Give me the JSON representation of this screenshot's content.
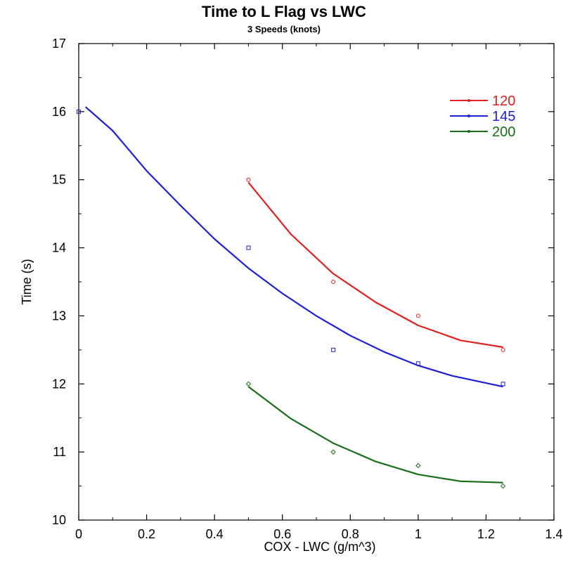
{
  "chart_data": {
    "type": "scatter",
    "title": "Time to L Flag vs LWC",
    "subtitle": "3 Speeds (knots)",
    "xlabel": "COX - LWC (g/m^3)",
    "ylabel": "Time (s)",
    "xlim": [
      0,
      1.4
    ],
    "ylim": [
      10,
      17
    ],
    "xticks": [
      "0",
      "0.2",
      "0.4",
      "0.6",
      "0.8",
      "1",
      "1.2",
      "1.4"
    ],
    "yticks": [
      "10",
      "11",
      "12",
      "13",
      "14",
      "15",
      "16",
      "17"
    ],
    "legend_position": "top-right",
    "grid": false,
    "series": [
      {
        "name": "120",
        "color": "#e0201e",
        "marker": "circle",
        "points": [
          [
            0.5,
            15.0
          ],
          [
            0.75,
            13.5
          ],
          [
            1.0,
            13.0
          ],
          [
            1.25,
            12.5
          ]
        ],
        "fit": [
          [
            0.5,
            14.96
          ],
          [
            0.625,
            14.2
          ],
          [
            0.75,
            13.62
          ],
          [
            0.875,
            13.2
          ],
          [
            1.0,
            12.86
          ],
          [
            1.125,
            12.64
          ],
          [
            1.25,
            12.54
          ]
        ]
      },
      {
        "name": "145",
        "color": "#1f1fd8",
        "marker": "square",
        "points": [
          [
            0.0,
            16.0
          ],
          [
            0.5,
            14.0
          ],
          [
            0.75,
            12.5
          ],
          [
            1.0,
            12.3
          ],
          [
            1.25,
            12.0
          ]
        ],
        "fit": [
          [
            0.02,
            16.07
          ],
          [
            0.1,
            15.72
          ],
          [
            0.2,
            15.13
          ],
          [
            0.3,
            14.62
          ],
          [
            0.4,
            14.13
          ],
          [
            0.5,
            13.7
          ],
          [
            0.6,
            13.33
          ],
          [
            0.7,
            13.0
          ],
          [
            0.8,
            12.71
          ],
          [
            0.9,
            12.47
          ],
          [
            1.0,
            12.27
          ],
          [
            1.1,
            12.12
          ],
          [
            1.25,
            11.96
          ]
        ]
      },
      {
        "name": "200",
        "color": "#1a6e1a",
        "marker": "diamond",
        "points": [
          [
            0.5,
            12.0
          ],
          [
            0.75,
            11.0
          ],
          [
            1.0,
            10.8
          ],
          [
            1.25,
            10.5
          ]
        ],
        "fit": [
          [
            0.5,
            11.96
          ],
          [
            0.625,
            11.49
          ],
          [
            0.75,
            11.13
          ],
          [
            0.875,
            10.86
          ],
          [
            1.0,
            10.67
          ],
          [
            1.125,
            10.57
          ],
          [
            1.25,
            10.55
          ]
        ]
      }
    ]
  }
}
